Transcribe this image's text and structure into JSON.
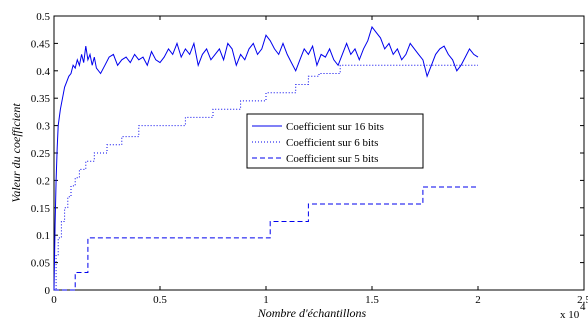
{
  "chart_data": {
    "type": "line",
    "xlabel": "Nombre d'échantillons",
    "ylabel": "Valeur du coefficient",
    "x_multiplier": "x 10",
    "x_multiplier_exponent": "4",
    "xlim": [
      0,
      2.5
    ],
    "ylim": [
      0,
      0.5
    ],
    "x_ticks": [
      0,
      0.5,
      1,
      1.5,
      2,
      2.5
    ],
    "x_tick_labels": [
      "0",
      "0.5",
      "1",
      "1.5",
      "2",
      "2.5"
    ],
    "y_ticks": [
      0,
      0.05,
      0.1,
      0.15,
      0.2,
      0.25,
      0.3,
      0.35,
      0.4,
      0.45,
      0.5
    ],
    "y_tick_labels": [
      "0",
      "0.05",
      "0.1",
      "0.15",
      "0.2",
      "0.25",
      "0.3",
      "0.35",
      "0.4",
      "0.45",
      "0.5"
    ],
    "grid": false,
    "legend_position": "center",
    "line_color": "#0000ee",
    "series": [
      {
        "name": "Coefficient sur 16 bits",
        "style": "solid",
        "x": [
          0,
          0.005,
          0.01,
          0.015,
          0.02,
          0.03,
          0.04,
          0.05,
          0.06,
          0.07,
          0.08,
          0.09,
          0.1,
          0.11,
          0.12,
          0.13,
          0.14,
          0.15,
          0.16,
          0.17,
          0.18,
          0.19,
          0.2,
          0.22,
          0.24,
          0.26,
          0.28,
          0.3,
          0.32,
          0.34,
          0.36,
          0.38,
          0.4,
          0.42,
          0.44,
          0.46,
          0.48,
          0.5,
          0.52,
          0.54,
          0.56,
          0.58,
          0.6,
          0.62,
          0.64,
          0.66,
          0.68,
          0.7,
          0.72,
          0.74,
          0.76,
          0.78,
          0.8,
          0.82,
          0.84,
          0.86,
          0.88,
          0.9,
          0.92,
          0.94,
          0.96,
          0.98,
          1.0,
          1.02,
          1.04,
          1.06,
          1.08,
          1.1,
          1.12,
          1.14,
          1.16,
          1.18,
          1.2,
          1.22,
          1.24,
          1.26,
          1.28,
          1.3,
          1.32,
          1.34,
          1.36,
          1.38,
          1.4,
          1.42,
          1.44,
          1.46,
          1.48,
          1.5,
          1.52,
          1.54,
          1.56,
          1.58,
          1.6,
          1.62,
          1.64,
          1.66,
          1.68,
          1.7,
          1.72,
          1.74,
          1.76,
          1.78,
          1.8,
          1.82,
          1.84,
          1.86,
          1.88,
          1.9,
          1.92,
          1.94,
          1.96,
          1.98,
          2.0
        ],
        "y": [
          0,
          0.12,
          0.2,
          0.26,
          0.3,
          0.33,
          0.35,
          0.37,
          0.38,
          0.39,
          0.395,
          0.41,
          0.405,
          0.42,
          0.41,
          0.43,
          0.415,
          0.445,
          0.42,
          0.43,
          0.41,
          0.425,
          0.405,
          0.395,
          0.41,
          0.425,
          0.43,
          0.41,
          0.42,
          0.425,
          0.415,
          0.43,
          0.42,
          0.425,
          0.41,
          0.435,
          0.42,
          0.415,
          0.425,
          0.44,
          0.43,
          0.45,
          0.425,
          0.44,
          0.43,
          0.45,
          0.41,
          0.43,
          0.44,
          0.42,
          0.43,
          0.44,
          0.42,
          0.45,
          0.44,
          0.41,
          0.43,
          0.42,
          0.44,
          0.45,
          0.43,
          0.44,
          0.465,
          0.455,
          0.44,
          0.43,
          0.45,
          0.43,
          0.415,
          0.4,
          0.42,
          0.44,
          0.43,
          0.445,
          0.41,
          0.43,
          0.425,
          0.44,
          0.42,
          0.41,
          0.43,
          0.45,
          0.43,
          0.44,
          0.42,
          0.44,
          0.455,
          0.48,
          0.47,
          0.46,
          0.44,
          0.45,
          0.43,
          0.44,
          0.42,
          0.43,
          0.45,
          0.44,
          0.43,
          0.42,
          0.39,
          0.41,
          0.43,
          0.44,
          0.445,
          0.43,
          0.42,
          0.4,
          0.41,
          0.425,
          0.44,
          0.43,
          0.425
        ]
      },
      {
        "name": "Coefficient sur 6 bits",
        "style": "dotted",
        "x": [
          0,
          0.01,
          0.02,
          0.035,
          0.05,
          0.065,
          0.08,
          0.1,
          0.12,
          0.15,
          0.19,
          0.25,
          0.32,
          0.4,
          0.5,
          0.62,
          0.75,
          0.88,
          1.0,
          1.14,
          1.2,
          1.25,
          1.3,
          1.35,
          1.4,
          1.7,
          2.0
        ],
        "y": [
          0,
          0.063,
          0.095,
          0.125,
          0.15,
          0.17,
          0.19,
          0.205,
          0.22,
          0.235,
          0.25,
          0.265,
          0.28,
          0.3,
          0.3,
          0.315,
          0.33,
          0.345,
          0.36,
          0.375,
          0.39,
          0.395,
          0.395,
          0.41,
          0.41,
          0.41,
          0.41
        ]
      },
      {
        "name": "Coefficient sur 5 bits",
        "style": "dashed",
        "x": [
          0,
          0.1,
          0.1,
          0.16,
          0.16,
          1.02,
          1.02,
          1.2,
          1.2,
          1.74,
          1.74,
          2.0
        ],
        "y": [
          0,
          0,
          0.032,
          0.032,
          0.095,
          0.095,
          0.125,
          0.125,
          0.157,
          0.157,
          0.188,
          0.188
        ]
      }
    ]
  }
}
